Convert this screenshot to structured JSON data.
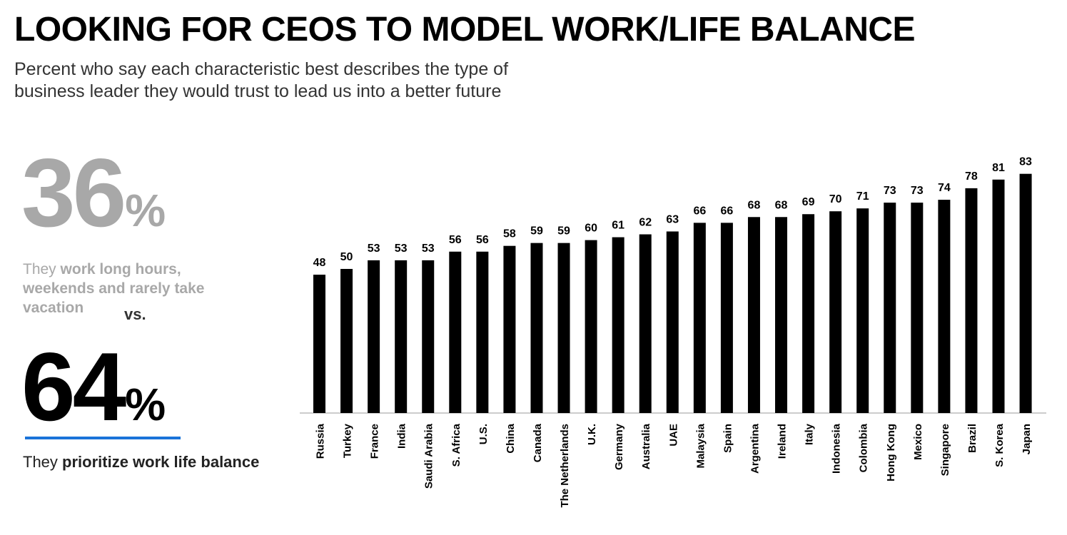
{
  "header": {
    "title": "LOOKING FOR CEOS TO MODEL WORK/LIFE BALANCE",
    "subtitle_line1": "Percent who say each characteristic best describes the type of",
    "subtitle_line2": "business leader they would trust to lead us into a better future"
  },
  "stats": {
    "work_long_hours": {
      "value": "36",
      "pct_sign": "%",
      "text_prefix": "They ",
      "text_bold": "work long hours, weekends and rarely take vacation"
    },
    "vs_label": "vs.",
    "work_life_balance": {
      "value": "64",
      "pct_sign": "%",
      "text_prefix": "They ",
      "text_bold": "prioritize work life balance"
    }
  },
  "colors": {
    "bar": "#000000",
    "highlight_grey": "#a8a8a8",
    "accent_blue": "#1a73d9",
    "axis": "#999999"
  },
  "chart_data": {
    "type": "bar",
    "categories": [
      "Russia",
      "Turkey",
      "France",
      "India",
      "Saudi Arabia",
      "S. Africa",
      "U.S.",
      "China",
      "Canada",
      "The Netherlands",
      "U.K.",
      "Germany",
      "Australia",
      "UAE",
      "Malaysia",
      "Spain",
      "Argentina",
      "Ireland",
      "Italy",
      "Indonesia",
      "Colombia",
      "Hong Kong",
      "Mexico",
      "Singapore",
      "Brazil",
      "S. Korea",
      "Japan"
    ],
    "values": [
      48,
      50,
      53,
      53,
      53,
      56,
      56,
      58,
      59,
      59,
      60,
      61,
      62,
      63,
      66,
      66,
      68,
      68,
      69,
      70,
      71,
      73,
      73,
      74,
      78,
      81,
      83
    ],
    "title": "",
    "xlabel": "",
    "ylabel": "",
    "ylim": [
      0,
      100
    ],
    "grid": false,
    "legend": "none"
  }
}
